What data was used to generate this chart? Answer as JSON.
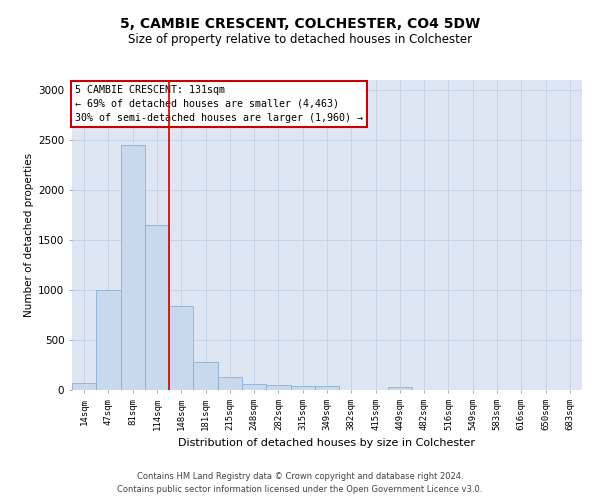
{
  "title": "5, CAMBIE CRESCENT, COLCHESTER, CO4 5DW",
  "subtitle": "Size of property relative to detached houses in Colchester",
  "xlabel": "Distribution of detached houses by size in Colchester",
  "ylabel": "Number of detached properties",
  "footer_line1": "Contains HM Land Registry data © Crown copyright and database right 2024.",
  "footer_line2": "Contains public sector information licensed under the Open Government Licence v3.0.",
  "annotation_title": "5 CAMBIE CRESCENT: 131sqm",
  "annotation_line1": "← 69% of detached houses are smaller (4,463)",
  "annotation_line2": "30% of semi-detached houses are larger (1,960) →",
  "bar_color": "#c8d9ee",
  "bar_edge_color": "#8ab0d4",
  "vline_color": "#cc0000",
  "annotation_box_edge": "#cc0000",
  "grid_color": "#c8d4e8",
  "bg_color": "#dde6f2",
  "categories": [
    "14sqm",
    "47sqm",
    "81sqm",
    "114sqm",
    "148sqm",
    "181sqm",
    "215sqm",
    "248sqm",
    "282sqm",
    "315sqm",
    "349sqm",
    "382sqm",
    "415sqm",
    "449sqm",
    "482sqm",
    "516sqm",
    "549sqm",
    "583sqm",
    "616sqm",
    "650sqm",
    "683sqm"
  ],
  "values": [
    75,
    1000,
    2450,
    1650,
    840,
    280,
    130,
    60,
    50,
    45,
    40,
    5,
    5,
    30,
    5,
    5,
    0,
    0,
    0,
    0,
    0
  ],
  "ylim": [
    0,
    3100
  ],
  "yticks": [
    0,
    500,
    1000,
    1500,
    2000,
    2500,
    3000
  ],
  "vline_x": 3.5
}
